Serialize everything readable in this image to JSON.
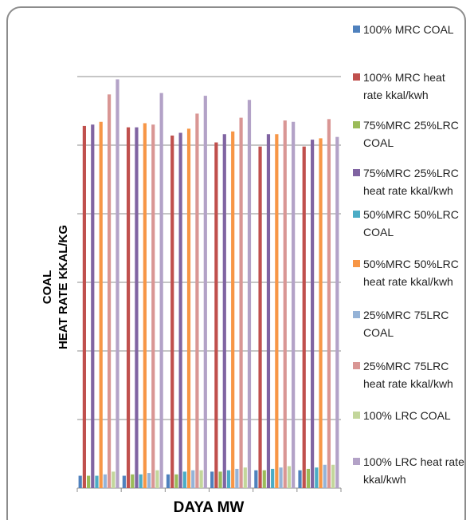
{
  "chart_data": {
    "type": "bar",
    "y_label": [
      "COAL",
      "HEAT RATE KKAL/KG"
    ],
    "x_label": "DAYA MW",
    "categories": [
      null,
      null,
      null,
      null,
      null,
      null
    ],
    "ylim": [
      0,
      3000
    ],
    "yticks": [
      0,
      500,
      1000,
      1500,
      2000,
      2500,
      3000
    ],
    "grid": true,
    "series": [
      {
        "name": "100% MRC COAL",
        "color": "#4f81bd",
        "values": [
          90,
          90,
          100,
          120,
          130,
          130
        ]
      },
      {
        "name": "100% MRC heat rate kkal/kwh",
        "color": "#c0504d",
        "values": [
          2640,
          2630,
          2570,
          2520,
          2490,
          2490
        ]
      },
      {
        "name": "75%MRC 25%LRC COAL",
        "color": "#9bbb59",
        "values": [
          90,
          100,
          100,
          120,
          130,
          140
        ]
      },
      {
        "name": "75%MRC 25%LRC heat rate kkal/kwh",
        "color": "#8064a2",
        "values": [
          2650,
          2630,
          2590,
          2580,
          2580,
          2540
        ]
      },
      {
        "name": "50%MRC 50%LRC COAL",
        "color": "#4bacc6",
        "values": [
          90,
          100,
          120,
          130,
          140,
          150
        ]
      },
      {
        "name": "50%MRC 50%LRC heat rate kkal/kwh",
        "color": "#f79646",
        "values": [
          2670,
          2660,
          2620,
          2600,
          2580,
          2550
        ]
      },
      {
        "name": "25%MRC 75LRC COAL",
        "color": "#95b3d7",
        "values": [
          100,
          110,
          130,
          140,
          150,
          170
        ]
      },
      {
        "name": "25%MRC 75LRC heat rate kkal/kwh",
        "color": "#d99694",
        "values": [
          2870,
          2650,
          2730,
          2700,
          2680,
          2690
        ]
      },
      {
        "name": "100% LRC COAL",
        "color": "#c3d69b",
        "values": [
          120,
          130,
          130,
          150,
          160,
          170
        ]
      },
      {
        "name": "100% LRC heat rate kkal/kwh",
        "color": "#b3a2c7",
        "values": [
          2980,
          2880,
          2860,
          2830,
          2670,
          2560
        ]
      }
    ]
  }
}
